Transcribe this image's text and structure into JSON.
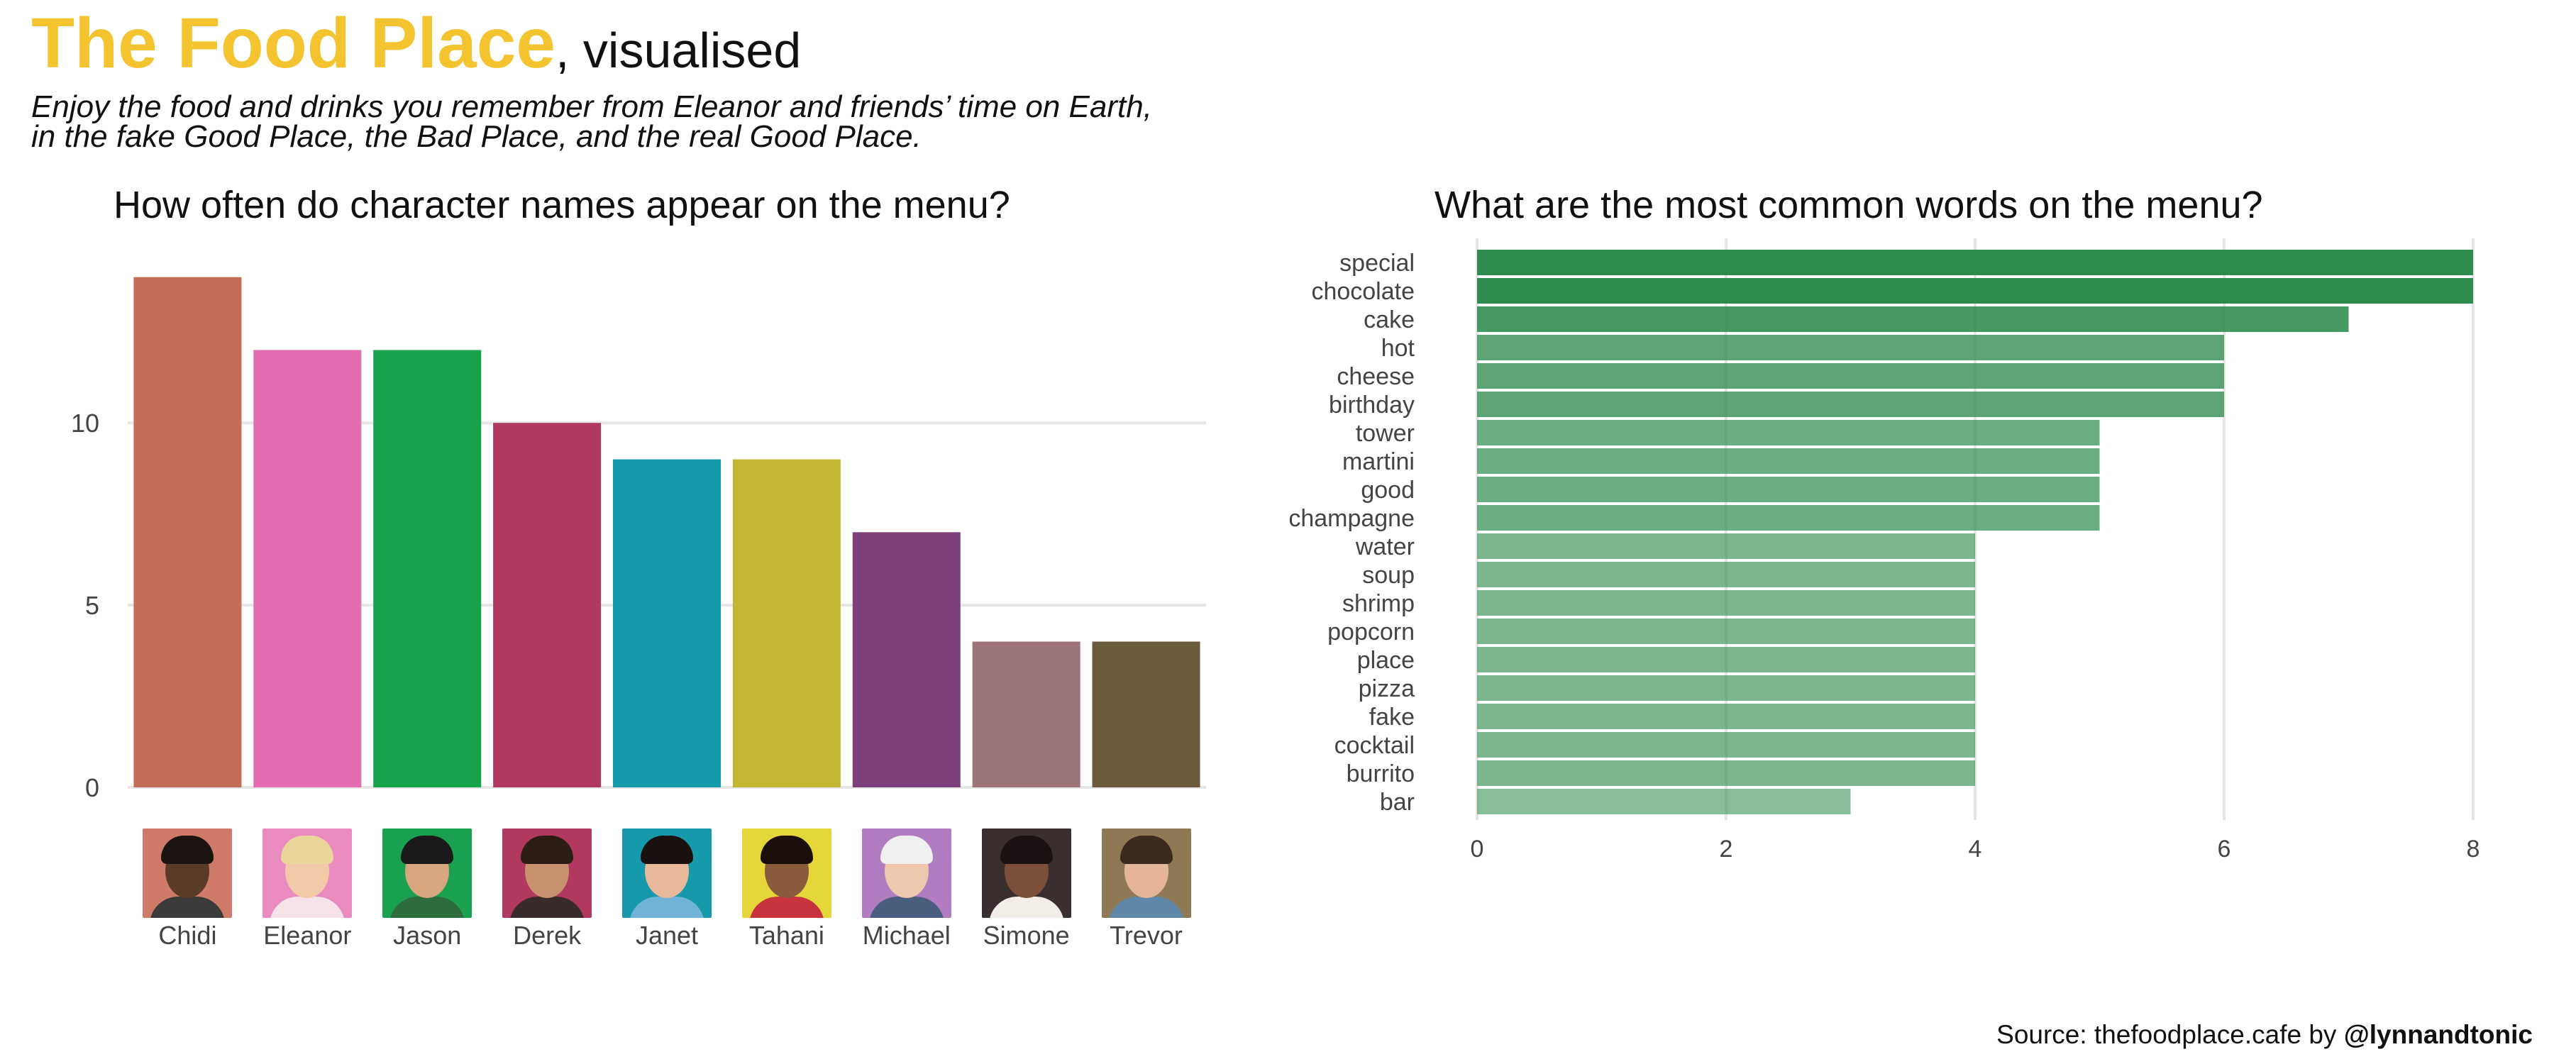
{
  "header": {
    "title_accent": "The Food Place",
    "title_rest": ", visualised",
    "subtitle_line1": "Enjoy the food and drinks you remember from Eleanor and friends’ time on Earth,",
    "subtitle_line2": "in the fake Good Place, the Bad Place, and the real Good Place.",
    "accent_color": "#F4C430"
  },
  "footer": {
    "source_prefix": "Source: thefoodplace.cafe by ",
    "source_handle": "@lynnandtonic"
  },
  "chart_data": [
    {
      "type": "bar",
      "title": "How often do character names appear on the menu?",
      "xlabel": "",
      "ylabel": "",
      "categories": [
        "Chidi",
        "Eleanor",
        "Jason",
        "Derek",
        "Janet",
        "Tahani",
        "Michael",
        "Simone",
        "Trevor"
      ],
      "values": [
        14,
        12,
        12,
        10,
        9,
        9,
        7,
        4,
        4
      ],
      "colors": [
        "#C46D56",
        "#E46DB1",
        "#18A24B",
        "#B1385E",
        "#1599AB",
        "#C3B634",
        "#7E3F7D",
        "#9C7478",
        "#6A5B3D"
      ],
      "yticks": [
        0,
        5,
        10
      ],
      "ylim": [
        0,
        14.5
      ],
      "grid": true
    },
    {
      "type": "bar",
      "orientation": "horizontal",
      "title": "What are the most common words on the menu?",
      "xlabel": "",
      "ylabel": "",
      "categories": [
        "special",
        "chocolate",
        "cake",
        "hot",
        "cheese",
        "birthday",
        "tower",
        "martini",
        "good",
        "champagne",
        "water",
        "soup",
        "shrimp",
        "popcorn",
        "place",
        "pizza",
        "fake",
        "cocktail",
        "burrito",
        "bar"
      ],
      "values": [
        8,
        8,
        7,
        6,
        6,
        6,
        5,
        5,
        5,
        5,
        4,
        4,
        4,
        4,
        4,
        4,
        4,
        4,
        4,
        3
      ],
      "bar_color": "#2E8B4E",
      "xticks": [
        0,
        2,
        4,
        6,
        8
      ],
      "xlim": [
        0,
        8
      ],
      "grid": true
    }
  ]
}
